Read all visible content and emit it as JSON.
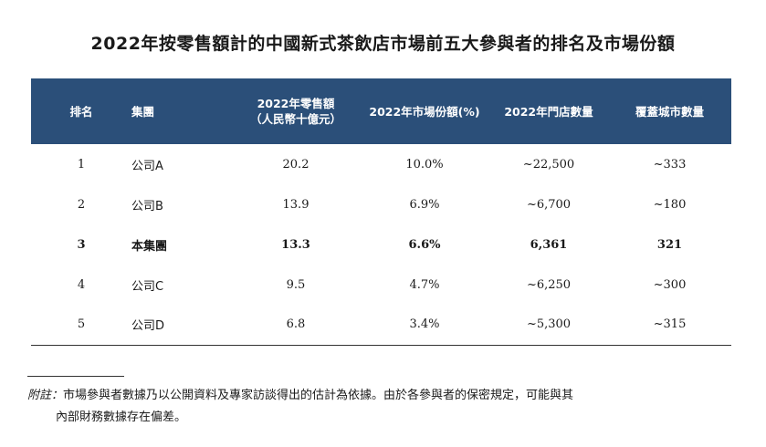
{
  "title": "2022年按零售額計的中國新式茶飲店市場前五大參與者的排名及市場份額",
  "table": {
    "headers": {
      "rank": "排名",
      "group": "集團",
      "sales_line1": "2022年零售額",
      "sales_line2": "（人民幣十億元）",
      "share": "2022年市場份額(%)",
      "stores": "2022年門店數量",
      "cities": "覆蓋城市數量"
    },
    "rows": [
      {
        "rank": "1",
        "group": "公司A",
        "sales": "20.2",
        "share": "10.0%",
        "stores": "~22,500",
        "cities": "~333"
      },
      {
        "rank": "2",
        "group": "公司B",
        "sales": "13.9",
        "share": "6.9%",
        "stores": "~6,700",
        "cities": "~180"
      },
      {
        "rank": "3",
        "group": "本集團",
        "sales": "13.3",
        "share": "6.6%",
        "stores": "6,361",
        "cities": "321"
      },
      {
        "rank": "4",
        "group": "公司C",
        "sales": "9.5",
        "share": "4.7%",
        "stores": "~6,250",
        "cities": "~300"
      },
      {
        "rank": "5",
        "group": "公司D",
        "sales": "6.8",
        "share": "3.4%",
        "stores": "~5,300",
        "cities": "~315"
      }
    ]
  },
  "note": {
    "label": "附註：",
    "line1": "市場參與者數據乃以公開資料及專家訪談得出的估計為依據。由於各參與者的保密規定，可能與其",
    "line2": "內部財務數據存在偏差。"
  },
  "colors": {
    "header_background": "#2b4f79",
    "header_text": "#ffffff"
  }
}
